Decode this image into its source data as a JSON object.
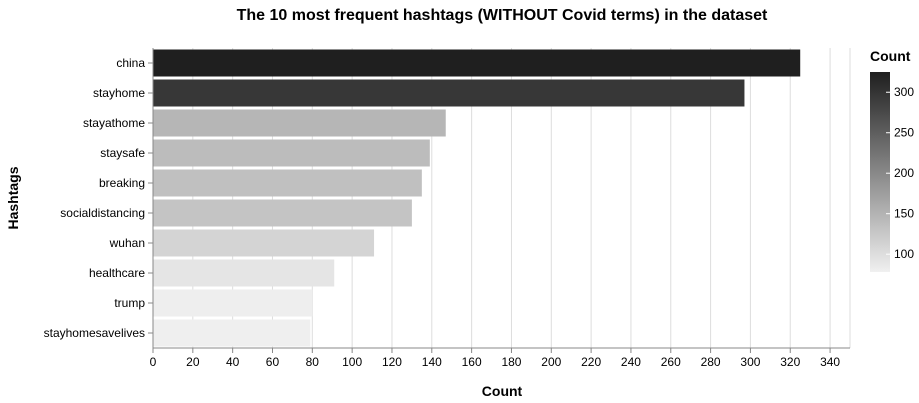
{
  "chart_data": {
    "type": "bar",
    "orientation": "horizontal",
    "title": "The 10 most frequent hashtags (WITHOUT Covid terms) in the dataset",
    "xlabel": "Count",
    "ylabel": "Hashtags",
    "xlim": [
      0,
      350
    ],
    "x_ticks": [
      0,
      20,
      40,
      60,
      80,
      100,
      120,
      140,
      160,
      180,
      200,
      220,
      240,
      260,
      280,
      300,
      320,
      340
    ],
    "grid": true,
    "categories": [
      "china",
      "stayhome",
      "stayathome",
      "staysafe",
      "breaking",
      "socialdistancing",
      "wuhan",
      "healthcare",
      "trump",
      "stayhomesavelives"
    ],
    "values": [
      325,
      297,
      147,
      139,
      135,
      130,
      111,
      91,
      80,
      79
    ],
    "legend": {
      "title": "Count",
      "placement": "right",
      "type": "gradient",
      "range": [
        78,
        325
      ],
      "ticks": [
        100,
        150,
        200,
        250,
        300
      ],
      "color_low": "#f0f0f0",
      "color_high": "#1f1f1f"
    }
  }
}
